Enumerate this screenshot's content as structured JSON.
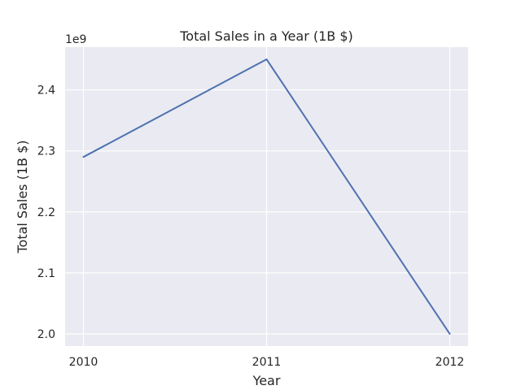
{
  "chart_data": {
    "type": "line",
    "title": "Total Sales in a Year (1B $)",
    "xlabel": "Year",
    "ylabel": "Total Sales (1B $)",
    "offset_text": "1e9",
    "x": [
      "2010",
      "2011",
      "2012"
    ],
    "series": [
      {
        "values": [
          2290000000,
          2450000000,
          2000000000
        ],
        "color": "#4c72b0"
      }
    ],
    "ylim": [
      1980000000,
      2470000000
    ],
    "yticks": [
      2000000000,
      2100000000,
      2200000000,
      2300000000,
      2400000000
    ],
    "ytick_labels": [
      "2.0",
      "2.1",
      "2.2",
      "2.3",
      "2.4"
    ],
    "grid": true,
    "background_color": "#eaeaf2"
  }
}
